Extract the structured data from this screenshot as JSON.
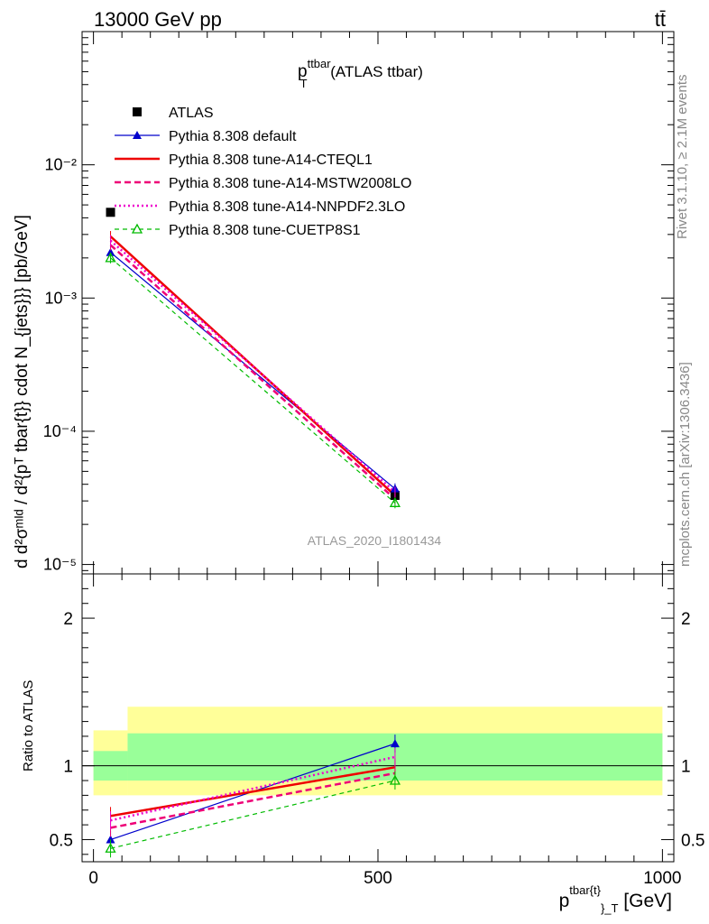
{
  "header": {
    "left": "13000 GeV pp",
    "right": "tt̄"
  },
  "side_labels": {
    "top": "Rivet 3.1.10, ≥ 2.1M events",
    "bottom": "mcplots.cern.ch [arXiv:1306.3436]"
  },
  "watermark": "ATLAS_2020_I1801434",
  "main_title": {
    "base": "p",
    "sup": "ttbar",
    "sub": "T",
    "rest": " (ATLAS ttbar)"
  },
  "y_label_main": "d d²σᵐᴵᵈ / d²{pᵀ tbar{t}} cdot N_{jets}}} [pb/GeV]",
  "y_label_ratio": "Ratio to ATLAS",
  "x_label": {
    "base": "p",
    "sup": "tbar{t}",
    "sub": "}_T",
    "unit": " [GeV]"
  },
  "colors": {
    "atlas": "#000000",
    "default": "#0000cc",
    "cteql1": "#ee0000",
    "mstw": "#ee0077",
    "nnpdf": "#ee00cc",
    "cuetp": "#00bb00",
    "band_stat": "#99ff99",
    "band_syst": "#ffff99"
  },
  "chart_data": [
    {
      "type": "line",
      "panel": "main",
      "yscale": "log",
      "xlim": [
        -20,
        1020
      ],
      "ylim": [
        8.5e-06,
        0.1
      ],
      "y_ticks": [
        {
          "value": 0.01,
          "label": "10⁻²"
        },
        {
          "value": 0.001,
          "label": "10⁻³"
        },
        {
          "value": 0.0001,
          "label": "10⁻⁴"
        },
        {
          "value": 1e-05,
          "label": "10⁻⁵"
        }
      ],
      "x": [
        30,
        530
      ],
      "series": [
        {
          "name": "ATLAS",
          "key": "atlas",
          "values": [
            0.0044,
            3.3e-05
          ]
        },
        {
          "name": "Pythia 8.308 default",
          "key": "default",
          "values": [
            0.0022,
            3.7e-05
          ]
        },
        {
          "name": "Pythia 8.308 tune-A14-CTEQL1",
          "key": "cteql1",
          "values": [
            0.0029,
            3.3e-05
          ]
        },
        {
          "name": "Pythia 8.308 tune-A14-MSTW2008LO",
          "key": "mstw",
          "values": [
            0.0025,
            3.1e-05
          ]
        },
        {
          "name": "Pythia 8.308 tune-A14-NNPDF2.3LO",
          "key": "nnpdf",
          "values": [
            0.0027,
            3.5e-05
          ]
        },
        {
          "name": "Pythia 8.308 tune-CUETP8S1",
          "key": "cuetp",
          "values": [
            0.002,
            2.9e-05
          ]
        }
      ]
    },
    {
      "type": "line",
      "panel": "ratio",
      "xlim": [
        -20,
        1020
      ],
      "ylim": [
        0.35,
        2.3
      ],
      "y_ticks": [
        {
          "value": 0.5,
          "label": "0.5"
        },
        {
          "value": 1,
          "label": "1"
        },
        {
          "value": 2,
          "label": "2"
        }
      ],
      "x_ticks": [
        {
          "value": 0,
          "label": "0"
        },
        {
          "value": 500,
          "label": "500"
        },
        {
          "value": 1000,
          "label": "1000"
        }
      ],
      "x": [
        30,
        530
      ],
      "bands": [
        {
          "x0": 0,
          "x1": 60,
          "stat": [
            0.9,
            1.1
          ],
          "syst": [
            0.8,
            1.24
          ]
        },
        {
          "x0": 60,
          "x1": 1000,
          "stat": [
            0.9,
            1.22
          ],
          "syst": [
            0.8,
            1.4
          ]
        }
      ],
      "series": [
        {
          "name": "Pythia 8.308 default",
          "key": "default",
          "values": [
            0.5,
            1.15
          ]
        },
        {
          "name": "Pythia 8.308 tune-A14-CTEQL1",
          "key": "cteql1",
          "values": [
            0.66,
            0.99
          ]
        },
        {
          "name": "Pythia 8.308 tune-A14-MSTW2008LO",
          "key": "mstw",
          "values": [
            0.58,
            0.95
          ]
        },
        {
          "name": "Pythia 8.308 tune-A14-NNPDF2.3LO",
          "key": "nnpdf",
          "values": [
            0.63,
            1.06
          ]
        },
        {
          "name": "Pythia 8.308 tune-CUETP8S1",
          "key": "cuetp",
          "values": [
            0.44,
            0.9
          ]
        }
      ]
    }
  ]
}
